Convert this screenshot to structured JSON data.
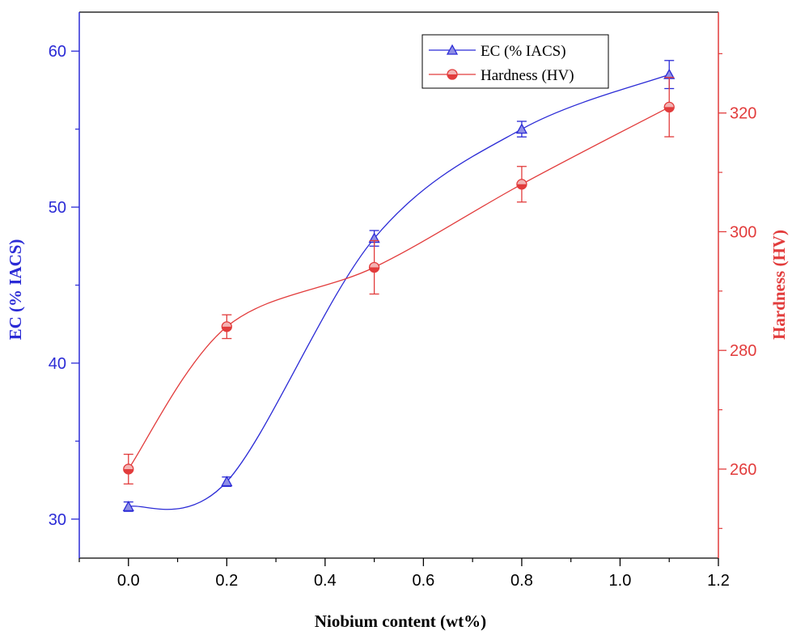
{
  "chart_data": {
    "type": "line",
    "title": "",
    "xlabel": "Niobium content (wt%)",
    "ylabel": "EC (% IACS)",
    "y2label": "Hardness (HV)",
    "xlim": [
      -0.1,
      1.2
    ],
    "ylim": [
      27.5,
      62.5
    ],
    "y2lim": [
      245,
      337
    ],
    "x_ticks": [
      "0.0",
      "0.2",
      "0.4",
      "0.6",
      "0.8",
      "1.0",
      "1.2"
    ],
    "y_ticks": [
      "30",
      "40",
      "50",
      "60"
    ],
    "y2_ticks": [
      "260",
      "280",
      "300",
      "320"
    ],
    "legend_position": "top-right",
    "series": [
      {
        "name": "EC (% IACS)",
        "axis": "left",
        "color": "#2b2bd6",
        "marker": "triangle",
        "x": [
          0.0,
          0.2,
          0.5,
          0.8,
          1.1
        ],
        "values": [
          30.8,
          32.4,
          48.0,
          55.0,
          58.5
        ],
        "errors": [
          0.3,
          0.3,
          0.5,
          0.5,
          0.9
        ]
      },
      {
        "name": "Hardness (HV)",
        "axis": "right",
        "color": "#e23c3c",
        "marker": "circle",
        "x": [
          0.0,
          0.2,
          0.5,
          0.8,
          1.1
        ],
        "values": [
          260,
          284,
          294,
          308,
          321
        ],
        "errors": [
          2.5,
          2.0,
          4.5,
          3.0,
          5.0
        ]
      }
    ]
  }
}
